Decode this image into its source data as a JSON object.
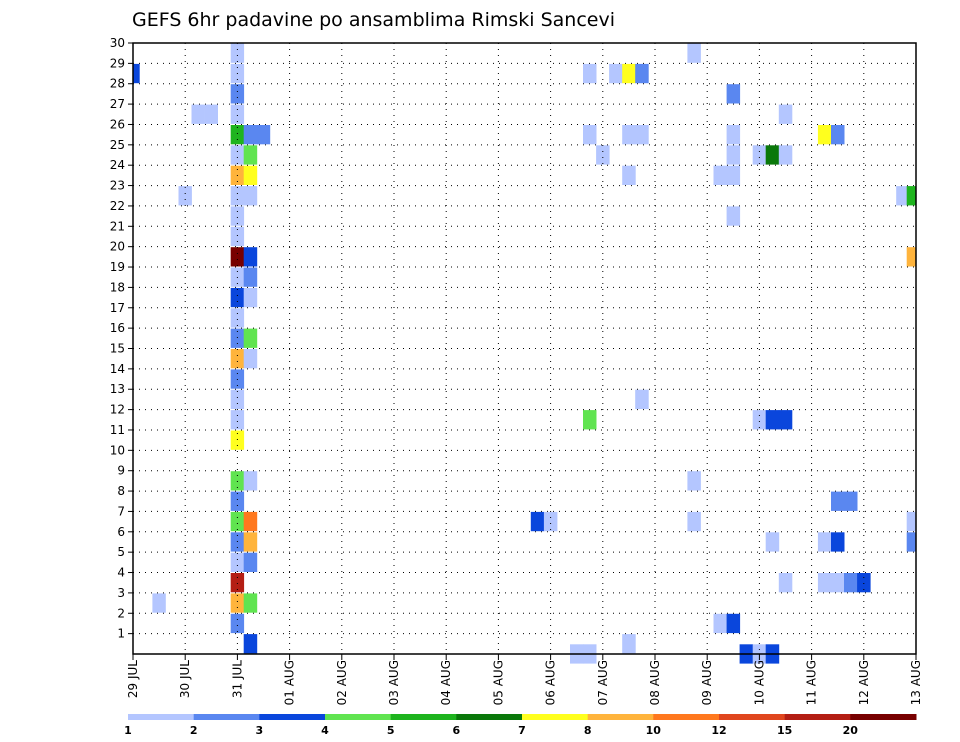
{
  "chart_data": {
    "type": "heatmap",
    "title": "GEFS 6hr padavine po ansamblima Rimski Sancevi",
    "xlabel": "",
    "ylabel": "",
    "x_tick_labels": [
      "29 JUL",
      "30 JUL",
      "31 JUL",
      "01 AUG",
      "02 AUG",
      "03 AUG",
      "04 AUG",
      "05 AUG",
      "06 AUG",
      "07 AUG",
      "08 AUG",
      "09 AUG",
      "10 AUG",
      "11 AUG",
      "12 AUG",
      "13 AUG"
    ],
    "y_tick_labels": [
      "1",
      "2",
      "3",
      "4",
      "5",
      "6",
      "7",
      "8",
      "9",
      "10",
      "11",
      "12",
      "13",
      "14",
      "15",
      "16",
      "17",
      "18",
      "19",
      "20",
      "21",
      "22",
      "23",
      "24",
      "25",
      "26",
      "27",
      "28",
      "29",
      "30"
    ],
    "x_range_days": [
      0,
      15
    ],
    "y_range": [
      0,
      30
    ],
    "grid": true,
    "legend_position": "bottom",
    "legend": {
      "labels": [
        "1",
        "2",
        "3",
        "4",
        "5",
        "6",
        "7",
        "8",
        "10",
        "12",
        "15",
        "20"
      ],
      "colors": [
        "#b4c6ff",
        "#5a87f0",
        "#0a46dc",
        "#60e450",
        "#1eb41e",
        "#0a780a",
        "#ffff1e",
        "#ffb43c",
        "#ff781e",
        "#e0461e",
        "#b41e14",
        "#780000"
      ]
    },
    "cells": [
      {
        "x": 2,
        "y": 29.5,
        "v": 1
      },
      {
        "x": 2,
        "y": 28.5,
        "v": 1
      },
      {
        "x": 2,
        "y": 27.5,
        "v": 2
      },
      {
        "x": 2,
        "y": 26.5,
        "v": 1
      },
      {
        "x": 2,
        "y": 25.5,
        "v": 5
      },
      {
        "x": 2,
        "y": 24.5,
        "v": 1
      },
      {
        "x": 2,
        "y": 23.5,
        "v": 8
      },
      {
        "x": 2,
        "y": 22.5,
        "v": 1
      },
      {
        "x": 2,
        "y": 21.5,
        "v": 1
      },
      {
        "x": 2,
        "y": 20.5,
        "v": 1
      },
      {
        "x": 2,
        "y": 19.5,
        "v": 20
      },
      {
        "x": 2,
        "y": 18.5,
        "v": 1
      },
      {
        "x": 2,
        "y": 17.5,
        "v": 3
      },
      {
        "x": 2,
        "y": 16.5,
        "v": 1
      },
      {
        "x": 2,
        "y": 15.5,
        "v": 2
      },
      {
        "x": 2,
        "y": 14.5,
        "v": 8
      },
      {
        "x": 2,
        "y": 13.5,
        "v": 2
      },
      {
        "x": 2,
        "y": 12.5,
        "v": 1
      },
      {
        "x": 2,
        "y": 11.5,
        "v": 1
      },
      {
        "x": 2,
        "y": 10.5,
        "v": 7
      },
      {
        "x": 2,
        "y": 8.5,
        "v": 4
      },
      {
        "x": 2,
        "y": 7.5,
        "v": 2
      },
      {
        "x": 2,
        "y": 6.5,
        "v": 4
      },
      {
        "x": 2,
        "y": 5.5,
        "v": 2
      },
      {
        "x": 2,
        "y": 4.5,
        "v": 1
      },
      {
        "x": 2,
        "y": 3.5,
        "v": 15
      },
      {
        "x": 2,
        "y": 2.5,
        "v": 8
      },
      {
        "x": 2,
        "y": 1.5,
        "v": 2
      },
      {
        "x": 2.25,
        "y": 25.5,
        "v": 2
      },
      {
        "x": 2.5,
        "y": 25.5,
        "v": 2
      },
      {
        "x": 2.25,
        "y": 24.5,
        "v": 4
      },
      {
        "x": 2.25,
        "y": 23.5,
        "v": 7
      },
      {
        "x": 2.25,
        "y": 22.5,
        "v": 1
      },
      {
        "x": 2.25,
        "y": 19.5,
        "v": 3
      },
      {
        "x": 2.25,
        "y": 18.5,
        "v": 2
      },
      {
        "x": 2.25,
        "y": 17.5,
        "v": 1
      },
      {
        "x": 2.25,
        "y": 15.5,
        "v": 4
      },
      {
        "x": 2.25,
        "y": 14.5,
        "v": 1
      },
      {
        "x": 2.25,
        "y": 8.5,
        "v": 1
      },
      {
        "x": 2.25,
        "y": 6.5,
        "v": 10
      },
      {
        "x": 2.25,
        "y": 5.5,
        "v": 8
      },
      {
        "x": 2.25,
        "y": 4.5,
        "v": 2
      },
      {
        "x": 2.25,
        "y": 2.5,
        "v": 4
      },
      {
        "x": 2.25,
        "y": 0.5,
        "v": 3
      },
      {
        "x": 0,
        "y": 28.5,
        "v": 3
      },
      {
        "x": 1.25,
        "y": 26.5,
        "v": 1
      },
      {
        "x": 1.5,
        "y": 26.5,
        "v": 1
      },
      {
        "x": 1,
        "y": 22.5,
        "v": 1
      },
      {
        "x": 0.5,
        "y": 2.5,
        "v": 1
      },
      {
        "x": 7.75,
        "y": 6.5,
        "v": 3
      },
      {
        "x": 8,
        "y": 6.5,
        "v": 1
      },
      {
        "x": 8.5,
        "y": 0,
        "v": 1
      },
      {
        "x": 8.75,
        "y": 0,
        "v": 1
      },
      {
        "x": 8.75,
        "y": 28.5,
        "v": 1
      },
      {
        "x": 8.75,
        "y": 25.5,
        "v": 1
      },
      {
        "x": 9,
        "y": 24.5,
        "v": 1
      },
      {
        "x": 8.75,
        "y": 11.5,
        "v": 4
      },
      {
        "x": 9.25,
        "y": 28.5,
        "v": 1
      },
      {
        "x": 9.5,
        "y": 28.5,
        "v": 7
      },
      {
        "x": 9.75,
        "y": 28.5,
        "v": 2
      },
      {
        "x": 9.5,
        "y": 25.5,
        "v": 1
      },
      {
        "x": 9.75,
        "y": 25.5,
        "v": 1
      },
      {
        "x": 9.5,
        "y": 23.5,
        "v": 1
      },
      {
        "x": 9.75,
        "y": 12.5,
        "v": 1
      },
      {
        "x": 9.5,
        "y": 0.5,
        "v": 1
      },
      {
        "x": 10.75,
        "y": 29.5,
        "v": 1
      },
      {
        "x": 10.75,
        "y": 8.5,
        "v": 1
      },
      {
        "x": 10.75,
        "y": 6.5,
        "v": 1
      },
      {
        "x": 11.5,
        "y": 27.5,
        "v": 2
      },
      {
        "x": 11.5,
        "y": 25.5,
        "v": 1
      },
      {
        "x": 11.5,
        "y": 24.5,
        "v": 1
      },
      {
        "x": 11.5,
        "y": 23.5,
        "v": 1
      },
      {
        "x": 11.25,
        "y": 23.5,
        "v": 1
      },
      {
        "x": 11.5,
        "y": 21.5,
        "v": 1
      },
      {
        "x": 11.25,
        "y": 1.5,
        "v": 1
      },
      {
        "x": 11.5,
        "y": 1.5,
        "v": 3
      },
      {
        "x": 11.75,
        "y": 0,
        "v": 3
      },
      {
        "x": 12,
        "y": 0,
        "v": 1
      },
      {
        "x": 12.25,
        "y": 0,
        "v": 3
      },
      {
        "x": 12,
        "y": 24.5,
        "v": 1
      },
      {
        "x": 12.25,
        "y": 24.5,
        "v": 6
      },
      {
        "x": 12.5,
        "y": 24.5,
        "v": 1
      },
      {
        "x": 12.5,
        "y": 26.5,
        "v": 1
      },
      {
        "x": 12,
        "y": 11.5,
        "v": 1
      },
      {
        "x": 12.25,
        "y": 11.5,
        "v": 3
      },
      {
        "x": 12.5,
        "y": 11.5,
        "v": 3
      },
      {
        "x": 12.25,
        "y": 5.5,
        "v": 1
      },
      {
        "x": 12.5,
        "y": 3.5,
        "v": 1
      },
      {
        "x": 13.25,
        "y": 25.5,
        "v": 7
      },
      {
        "x": 13.5,
        "y": 25.5,
        "v": 2
      },
      {
        "x": 13.5,
        "y": 7.5,
        "v": 2
      },
      {
        "x": 13.75,
        "y": 7.5,
        "v": 2
      },
      {
        "x": 13.25,
        "y": 5.5,
        "v": 1
      },
      {
        "x": 13.5,
        "y": 5.5,
        "v": 3
      },
      {
        "x": 13.25,
        "y": 3.5,
        "v": 1
      },
      {
        "x": 13.5,
        "y": 3.5,
        "v": 1
      },
      {
        "x": 13.75,
        "y": 3.5,
        "v": 2
      },
      {
        "x": 14,
        "y": 3.5,
        "v": 3
      },
      {
        "x": 14.75,
        "y": 22.5,
        "v": 1
      },
      {
        "x": 14.95,
        "y": 22.5,
        "v": 5
      },
      {
        "x": 14.95,
        "y": 19.5,
        "v": 8
      },
      {
        "x": 14.95,
        "y": 6.5,
        "v": 1
      },
      {
        "x": 14.95,
        "y": 5.5,
        "v": 2
      }
    ]
  }
}
